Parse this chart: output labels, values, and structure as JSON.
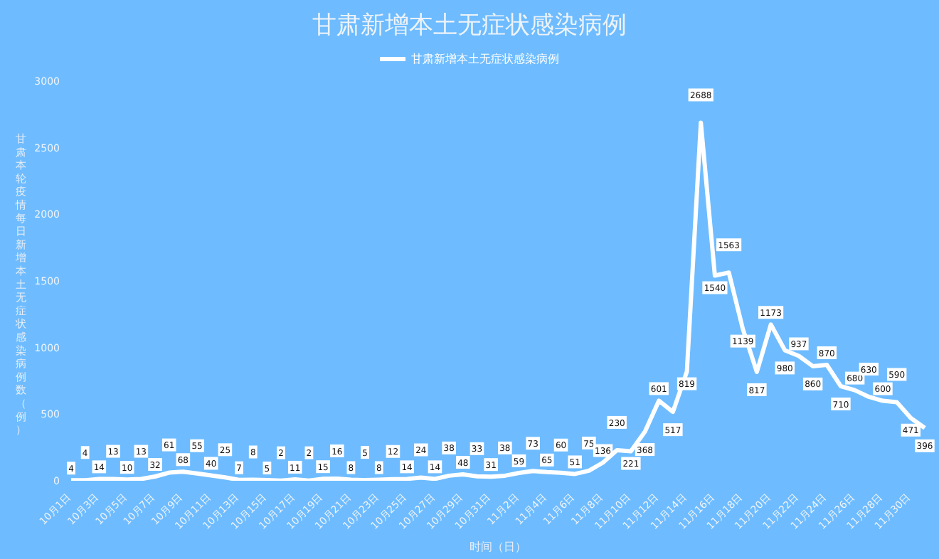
{
  "chart_data": {
    "type": "line",
    "title": "甘肃新增本土无症状感染病例",
    "xlabel": "时间（日）",
    "ylabel": "甘肃本轮疫情每日新增本土无症状感染病例数（例）",
    "categories": [
      "10月1日",
      null,
      "10月3日",
      null,
      "10月5日",
      null,
      "10月7日",
      null,
      "10月9日",
      null,
      "10月11日",
      null,
      "10月13日",
      null,
      "10月15日",
      null,
      "10月17日",
      null,
      "10月19日",
      null,
      "10月21日",
      null,
      "10月23日",
      null,
      "10月25日",
      null,
      "10月27日",
      null,
      "10月29日",
      null,
      "10月31日",
      null,
      "11月2日",
      null,
      "11月4日",
      null,
      "11月6日",
      null,
      "11月8日",
      null,
      "11月10日",
      null,
      "11月12日",
      null,
      "11月14日",
      null,
      "11月16日",
      null,
      "11月18日",
      null,
      "11月20日",
      null,
      "11月22日",
      null,
      "11月24日",
      null,
      "11月26日",
      null,
      "11月28日",
      null,
      "11月30日",
      null
    ],
    "series": [
      {
        "name": "甘肃新增本土无症状感染病例",
        "color": "#ffffff",
        "values": [
          4,
          4,
          14,
          13,
          10,
          13,
          32,
          61,
          68,
          55,
          40,
          25,
          7,
          8,
          5,
          2,
          11,
          2,
          15,
          16,
          8,
          5,
          8,
          12,
          14,
          24,
          14,
          38,
          48,
          33,
          31,
          38,
          59,
          73,
          65,
          60,
          51,
          75,
          136,
          230,
          221,
          368,
          601,
          517,
          819,
          2688,
          1540,
          1563,
          1139,
          817,
          1173,
          980,
          937,
          860,
          870,
          710,
          680,
          630,
          600,
          590,
          471,
          396
        ]
      }
    ],
    "ylim": [
      0,
      3000
    ],
    "yticks": [
      0,
      500,
      1000,
      1500,
      2000,
      2500,
      3000
    ],
    "grid": false,
    "legend": "top",
    "marker": "none",
    "line_style": "solid",
    "data_labels": true
  }
}
